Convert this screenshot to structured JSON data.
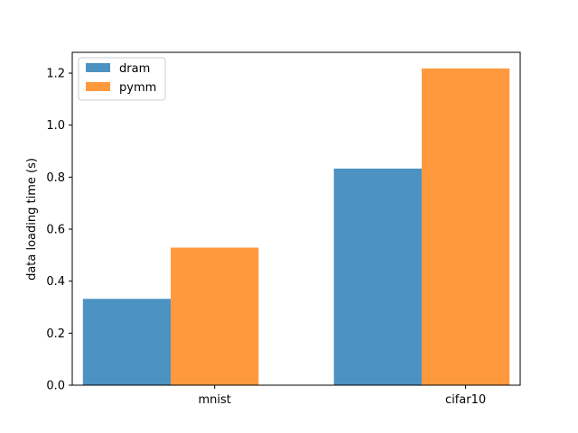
{
  "chart_data": {
    "type": "bar",
    "categories": [
      "mnist",
      "cifar10"
    ],
    "series": [
      {
        "name": "dram",
        "values": [
          0.332,
          0.833
        ],
        "color": "#1f77b4"
      },
      {
        "name": "pymm",
        "values": [
          0.529,
          1.218
        ],
        "color": "#ff7f0e"
      }
    ],
    "xlabel": "",
    "ylabel": "data loading time (s)",
    "ylim": [
      0,
      1.28
    ],
    "yticks": [
      "0.0",
      "0.2",
      "0.4",
      "0.6",
      "0.8",
      "1.0",
      "1.2"
    ],
    "bar_opacity": 0.8,
    "grid": false,
    "legend_position": "top-left"
  }
}
